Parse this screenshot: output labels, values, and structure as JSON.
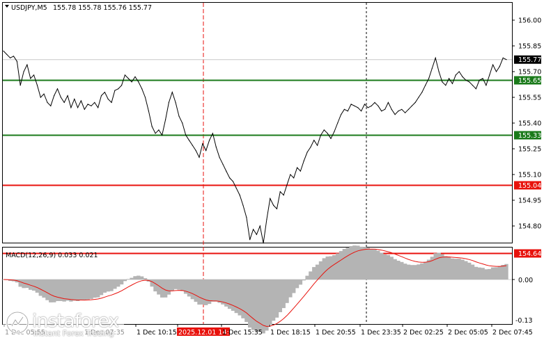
{
  "header": {
    "symbol": "USDJPY,M5",
    "ohlc": "155.78 155.78 155.76 155.77"
  },
  "macd": {
    "label": "MACD(12,26,9) 0.033 0.021",
    "axis_labels": [
      "0.00",
      "-0.13"
    ]
  },
  "watermark": {
    "brand": "instaforex",
    "tagline": "Instant Forex Trading"
  },
  "colors": {
    "price_line": "#000000",
    "support_green": "#1a7a1a",
    "resistance_red": "#e8120c",
    "histogram": "#b4b4b4",
    "signal": "#e8120c",
    "session_line": "#000000"
  },
  "chart_data": {
    "type": "line",
    "title": "",
    "price_axis": [
      "156.00",
      "155.85",
      "155.70",
      "155.55",
      "155.40",
      "155.25",
      "155.10",
      "154.95",
      "154.80"
    ],
    "current_price": "155.77",
    "ylim": [
      154.64,
      156.08
    ],
    "horizontal_levels": [
      {
        "value": 155.65,
        "label": "155.65",
        "color": "#1a7a1a"
      },
      {
        "value": 155.33,
        "label": "155.33",
        "color": "#1a7a1a"
      },
      {
        "value": 155.04,
        "label": "155.04",
        "color": "#e8120c"
      },
      {
        "value": 154.64,
        "label": "154.64",
        "color": "#e8120c"
      }
    ],
    "time_labels": [
      "1 Dec 05:55",
      "1 Dec 07:35",
      "1 Dec 10:15",
      "2025.12.01 14:20",
      "1 Dec 15:35",
      "1 Dec 18:15",
      "1 Dec 20:55",
      "1 Dec 23:35",
      "2 Dec 02:25",
      "2 Dec 05:05",
      "2 Dec 07:45"
    ],
    "highlighted_time": "2025.12.01 14:20",
    "series": [
      {
        "values": [
          155.82,
          155.8,
          155.78,
          155.79,
          155.76,
          155.62,
          155.7,
          155.74,
          155.66,
          155.68,
          155.62,
          155.55,
          155.57,
          155.52,
          155.5,
          155.56,
          155.6,
          155.55,
          155.52,
          155.56,
          155.49,
          155.54,
          155.49,
          155.53,
          155.48,
          155.51,
          155.5,
          155.52,
          155.49,
          155.56,
          155.58,
          155.54,
          155.52,
          155.59,
          155.6,
          155.62,
          155.68,
          155.66,
          155.64,
          155.67,
          155.64,
          155.6,
          155.55,
          155.47,
          155.38,
          155.34,
          155.36,
          155.33,
          155.42,
          155.52,
          155.58,
          155.52,
          155.44,
          155.4,
          155.33,
          155.3,
          155.27,
          155.24,
          155.2,
          155.28,
          155.24,
          155.3,
          155.34,
          155.26,
          155.2,
          155.16,
          155.12,
          155.08,
          155.06,
          155.02,
          154.98,
          154.92,
          154.85,
          154.72,
          154.78,
          154.75,
          154.8,
          154.7,
          154.84,
          154.96,
          154.92,
          154.9,
          155.0,
          154.98,
          155.04,
          155.1,
          155.08,
          155.14,
          155.12,
          155.18,
          155.23,
          155.26,
          155.3,
          155.27,
          155.33,
          155.36,
          155.34,
          155.31,
          155.35,
          155.4,
          155.45,
          155.48,
          155.47,
          155.51,
          155.5,
          155.49,
          155.47,
          155.51,
          155.49,
          155.5,
          155.52,
          155.5,
          155.47,
          155.48,
          155.52,
          155.48,
          155.45,
          155.47,
          155.48,
          155.46,
          155.48,
          155.5,
          155.52,
          155.55,
          155.58,
          155.62,
          155.66,
          155.72,
          155.78,
          155.7,
          155.64,
          155.62,
          155.66,
          155.63,
          155.68,
          155.7,
          155.67,
          155.65,
          155.64,
          155.62,
          155.6,
          155.65,
          155.66,
          155.62,
          155.68,
          155.74,
          155.7,
          155.73,
          155.78,
          155.77
        ]
      }
    ]
  }
}
